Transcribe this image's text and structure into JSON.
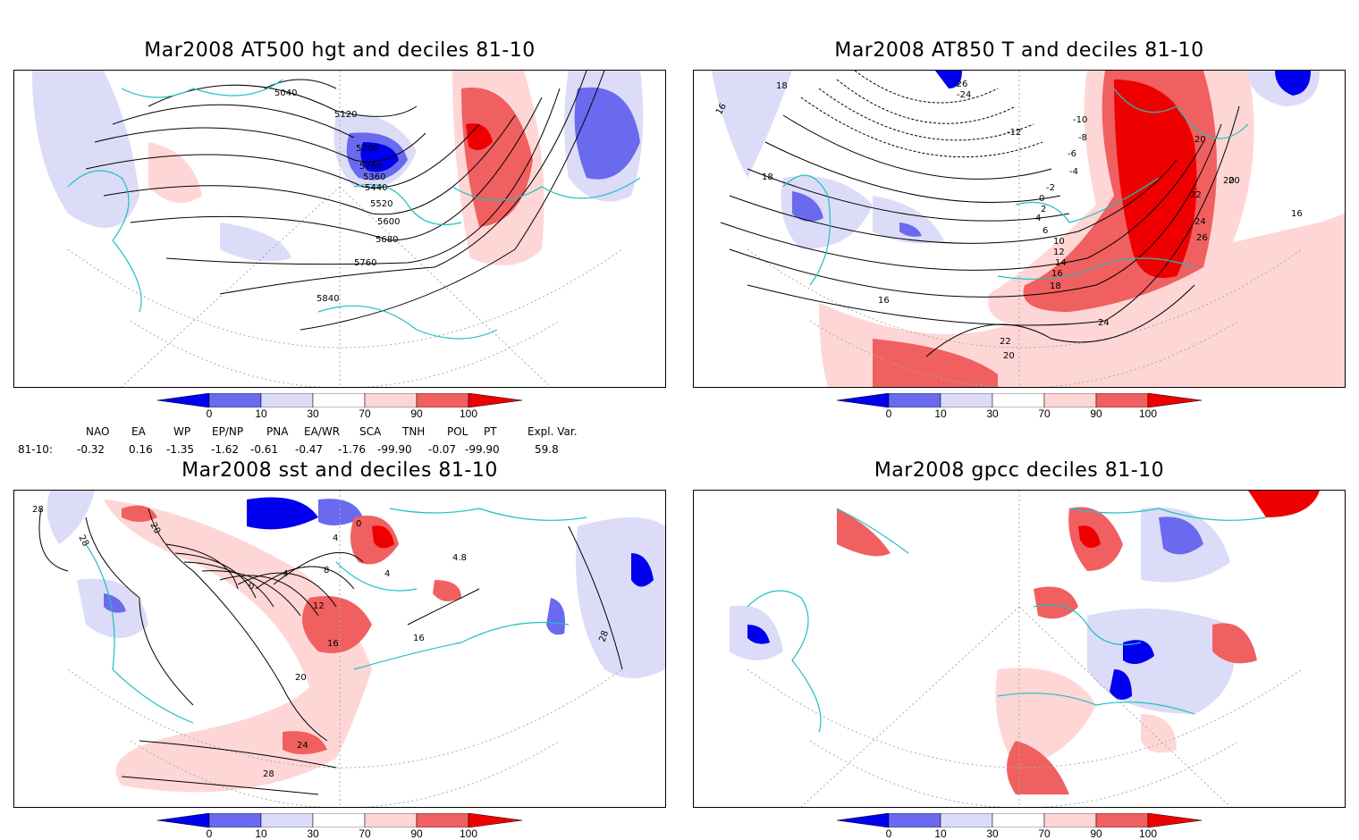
{
  "panels": [
    {
      "title": "Mar2008 AT500 hgt and deciles 81-10",
      "contour_labels": [
        "5040",
        "5120",
        "5200",
        "5260",
        "5360",
        "5440",
        "5520",
        "5600",
        "5680",
        "5760",
        "5840"
      ]
    },
    {
      "title": "Mar2008 AT850 T and deciles 81-10",
      "contour_labels": [
        "18",
        "16",
        "18",
        "-24",
        "-26",
        "-12",
        "-10",
        "-8",
        "-6",
        "-4",
        "-2",
        "0",
        "2",
        "4",
        "6",
        "10",
        "12",
        "14",
        "16",
        "18",
        "20",
        "20",
        "22",
        "24",
        "26",
        "20",
        "16",
        "16",
        "24",
        "22",
        "20"
      ]
    },
    {
      "title": "Mar2008 sst and deciles 81-10",
      "contour_labels": [
        "28",
        "28",
        "20",
        "0",
        "4",
        "8",
        "4",
        "4",
        "0",
        "12",
        "16",
        "16",
        "20",
        "24",
        "28",
        "28",
        "4.8"
      ]
    },
    {
      "title": "Mar2008 gpcc deciles 81-10",
      "contour_labels": []
    }
  ],
  "colorbar": {
    "ticks": [
      "0",
      "10",
      "30",
      "70",
      "90",
      "100"
    ],
    "colors": [
      "#0000ee",
      "#6a6aee",
      "#dcdcf8",
      "#ffffff",
      "#ffd6d6",
      "#f06060",
      "#ee0000"
    ]
  },
  "indices": {
    "headers": [
      "NAO",
      "EA",
      "WP",
      "EP/NP",
      "PNA",
      "EA/WR",
      "SCA",
      "TNH",
      "POL",
      "PT",
      "Expl. Var."
    ],
    "row_label": "81-10:",
    "values": [
      "-0.32",
      "0.16",
      "-1.35",
      "-1.62",
      "-0.61",
      "-0.47",
      "-1.76",
      "-99.90",
      "-0.07",
      "-99.90",
      "59.8"
    ]
  },
  "map_colors": {
    "coast": "#20c0c0",
    "contour": "#000000",
    "grid": "#aaaaaa"
  }
}
